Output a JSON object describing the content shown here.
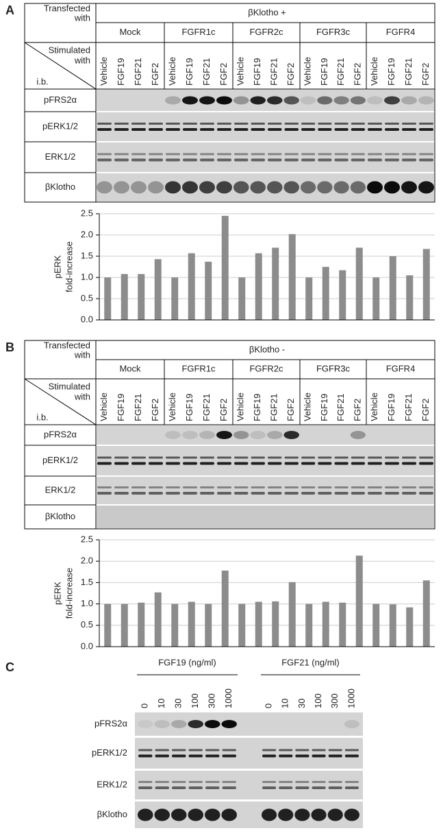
{
  "panel_a": {
    "label": "A",
    "transfected_with": [
      "Transfected",
      "with"
    ],
    "condition": "βKlotho +",
    "groups": [
      "Mock",
      "FGFR1c",
      "FGFR2c",
      "FGFR3c",
      "FGFR4"
    ],
    "stimulated_with": [
      "Stimulated",
      "with"
    ],
    "ib": "i.b.",
    "lanes": [
      "Vehicle",
      "FGF19",
      "FGF21",
      "FGF2"
    ],
    "blots": [
      "pFRS2α",
      "pERK1/2",
      "ERK1/2",
      "βKlotho"
    ]
  },
  "panel_b": {
    "label": "B",
    "transfected_with": [
      "Transfected",
      "with"
    ],
    "condition": "βKlotho -",
    "groups": [
      "Mock",
      "FGFR1c",
      "FGFR2c",
      "FGFR3c",
      "FGFR4"
    ],
    "stimulated_with": [
      "Stimulated",
      "with"
    ],
    "ib": "i.b.",
    "lanes": [
      "Vehicle",
      "FGF19",
      "FGF21",
      "FGF2"
    ],
    "blots": [
      "pFRS2α",
      "pERK1/2",
      "ERK1/2",
      "βKlotho"
    ]
  },
  "panel_c": {
    "label": "C",
    "groups": [
      {
        "name": "FGF19 (ng/ml)",
        "doses": [
          0,
          10,
          30,
          100,
          300,
          1000
        ]
      },
      {
        "name": "FGF21 (ng/ml)",
        "doses": [
          0,
          10,
          30,
          100,
          300,
          1000
        ]
      }
    ],
    "blots": [
      "pFRS2α",
      "pERK1/2",
      "ERK1/2",
      "βKlotho"
    ]
  },
  "chart_data": [
    {
      "type": "bar",
      "color": "#8c8c8c",
      "ylabel": [
        "pERK",
        "fold-increase"
      ],
      "grid": true,
      "ylim": [
        0,
        2.5
      ],
      "yticks": [
        {
          "value": 0,
          "label": "0.0"
        },
        {
          "value": 0.5,
          "label": "0.5"
        },
        {
          "value": 1,
          "label": "1.0"
        },
        {
          "value": 1.5,
          "label": "1.5"
        },
        {
          "value": 2,
          "label": "2.0"
        },
        {
          "value": 2.5,
          "label": "2.5"
        }
      ],
      "values": [
        1.0,
        1.08,
        1.08,
        1.43,
        1.0,
        1.57,
        1.37,
        2.45,
        1.0,
        1.57,
        1.7,
        2.02,
        1.0,
        1.25,
        1.17,
        1.7,
        1.0,
        1.5,
        1.05,
        1.67
      ]
    },
    {
      "type": "bar",
      "color": "#8c8c8c",
      "ylabel": [
        "pERK",
        "fold-increase"
      ],
      "grid": true,
      "ylim": [
        0,
        2.5
      ],
      "yticks": [
        {
          "value": 0,
          "label": "0.0"
        },
        {
          "value": 0.5,
          "label": "0.5"
        },
        {
          "value": 1,
          "label": "1.0"
        },
        {
          "value": 1.5,
          "label": "1.5"
        },
        {
          "value": 2,
          "label": "2.0"
        },
        {
          "value": 2.5,
          "label": "2.5"
        }
      ],
      "values": [
        1.0,
        1.0,
        1.03,
        1.27,
        1.0,
        1.05,
        1.0,
        1.78,
        1.0,
        1.05,
        1.06,
        1.51,
        1.0,
        1.05,
        1.03,
        2.13,
        1.0,
        0.99,
        0.92,
        1.55
      ]
    }
  ]
}
